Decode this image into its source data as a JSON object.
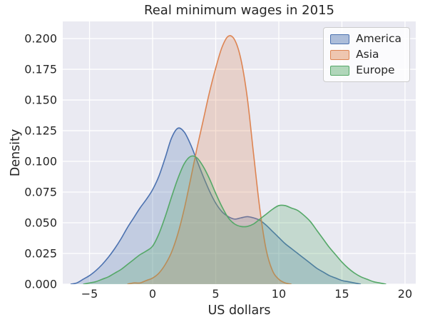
{
  "title": "Real minimum wages in 2015",
  "axes": {
    "xlabel": "US dollars",
    "ylabel": "Density",
    "x_ticks": [
      {
        "v": -5,
        "label": "−5"
      },
      {
        "v": 0,
        "label": "0"
      },
      {
        "v": 5,
        "label": "5"
      },
      {
        "v": 10,
        "label": "10"
      },
      {
        "v": 15,
        "label": "15"
      },
      {
        "v": 20,
        "label": "20"
      }
    ],
    "y_ticks": [
      {
        "v": 0.0,
        "label": "0.000"
      },
      {
        "v": 0.025,
        "label": "0.025"
      },
      {
        "v": 0.05,
        "label": "0.050"
      },
      {
        "v": 0.075,
        "label": "0.075"
      },
      {
        "v": 0.1,
        "label": "0.100"
      },
      {
        "v": 0.125,
        "label": "0.125"
      },
      {
        "v": 0.15,
        "label": "0.150"
      },
      {
        "v": 0.175,
        "label": "0.175"
      },
      {
        "v": 0.2,
        "label": "0.200"
      }
    ]
  },
  "legend": {
    "items": [
      {
        "label": "America",
        "color": "#4C72B0"
      },
      {
        "label": "Asia",
        "color": "#DD8452"
      },
      {
        "label": "Europe",
        "color": "#55A868"
      }
    ]
  },
  "style": {
    "plot_bg": "#EAEAF2",
    "grid_color": "#FFFFFF",
    "text_color": "#262626",
    "fill_alpha": 0.25,
    "legend_swatch_alpha": 0.45
  },
  "chart_data": {
    "type": "area",
    "subtype": "kde-density",
    "title": "Real minimum wages in 2015",
    "xlabel": "US dollars",
    "ylabel": "Density",
    "xlim": [
      -7.12,
      20.85
    ],
    "ylim": [
      0,
      0.214
    ],
    "grid": true,
    "legend_position": "upper right",
    "series": [
      {
        "name": "America",
        "color": "#4C72B0",
        "peak": {
          "x": 1.9,
          "density": 0.127
        },
        "x": [
          -6.5,
          -6,
          -5.5,
          -5,
          -4.5,
          -4,
          -3.5,
          -3,
          -2.5,
          -2,
          -1.5,
          -1,
          -0.5,
          0,
          0.5,
          1,
          1.5,
          2,
          2.5,
          3,
          3.5,
          4,
          4.5,
          5,
          5.5,
          6,
          6.5,
          7,
          7.5,
          8,
          8.5,
          9,
          9.5,
          10,
          10.5,
          11,
          11.5,
          12,
          12.5,
          13,
          13.5,
          14,
          14.5,
          15,
          15.5,
          16,
          16.5
        ],
        "y": [
          0.0,
          0.001,
          0.004,
          0.007,
          0.011,
          0.016,
          0.022,
          0.029,
          0.037,
          0.046,
          0.054,
          0.062,
          0.069,
          0.077,
          0.088,
          0.103,
          0.119,
          0.127,
          0.124,
          0.114,
          0.101,
          0.088,
          0.076,
          0.066,
          0.059,
          0.055,
          0.053,
          0.054,
          0.055,
          0.054,
          0.052,
          0.048,
          0.043,
          0.038,
          0.033,
          0.029,
          0.025,
          0.021,
          0.017,
          0.013,
          0.01,
          0.007,
          0.005,
          0.003,
          0.002,
          0.001,
          0.0
        ]
      },
      {
        "name": "Asia",
        "color": "#DD8452",
        "peak": {
          "x": 6.2,
          "density": 0.202
        },
        "x": [
          -2,
          -1.5,
          -1,
          -0.5,
          0,
          0.5,
          1,
          1.5,
          2,
          2.5,
          3,
          3.5,
          4,
          4.5,
          5,
          5.5,
          6,
          6.5,
          7,
          7.5,
          8,
          8.5,
          9,
          9.5,
          10,
          10.5,
          11
        ],
        "y": [
          0.0,
          0.001,
          0.001,
          0.003,
          0.005,
          0.009,
          0.016,
          0.026,
          0.041,
          0.061,
          0.085,
          0.11,
          0.133,
          0.156,
          0.176,
          0.193,
          0.202,
          0.199,
          0.183,
          0.152,
          0.106,
          0.061,
          0.028,
          0.011,
          0.004,
          0.001,
          0.0
        ]
      },
      {
        "name": "Europe",
        "color": "#55A868",
        "peak": {
          "x": 3.0,
          "density": 0.104
        },
        "x": [
          -5.5,
          -5,
          -4.5,
          -4,
          -3.5,
          -3,
          -2.5,
          -2,
          -1.5,
          -1,
          -0.5,
          0,
          0.5,
          1,
          1.5,
          2,
          2.5,
          3,
          3.5,
          4,
          4.5,
          5,
          5.5,
          6,
          6.5,
          7,
          7.5,
          8,
          8.5,
          9,
          9.5,
          10,
          10.5,
          11,
          11.5,
          12,
          12.5,
          13,
          13.5,
          14,
          14.5,
          15,
          15.5,
          16,
          16.5,
          17,
          17.5,
          18,
          18.5
        ],
        "y": [
          0.0,
          0.001,
          0.002,
          0.004,
          0.006,
          0.009,
          0.012,
          0.016,
          0.02,
          0.024,
          0.027,
          0.031,
          0.041,
          0.055,
          0.071,
          0.086,
          0.098,
          0.104,
          0.103,
          0.096,
          0.086,
          0.074,
          0.063,
          0.054,
          0.049,
          0.047,
          0.047,
          0.049,
          0.053,
          0.057,
          0.061,
          0.064,
          0.064,
          0.062,
          0.06,
          0.056,
          0.051,
          0.044,
          0.037,
          0.03,
          0.024,
          0.018,
          0.013,
          0.009,
          0.006,
          0.004,
          0.002,
          0.001,
          0.0
        ]
      }
    ]
  }
}
